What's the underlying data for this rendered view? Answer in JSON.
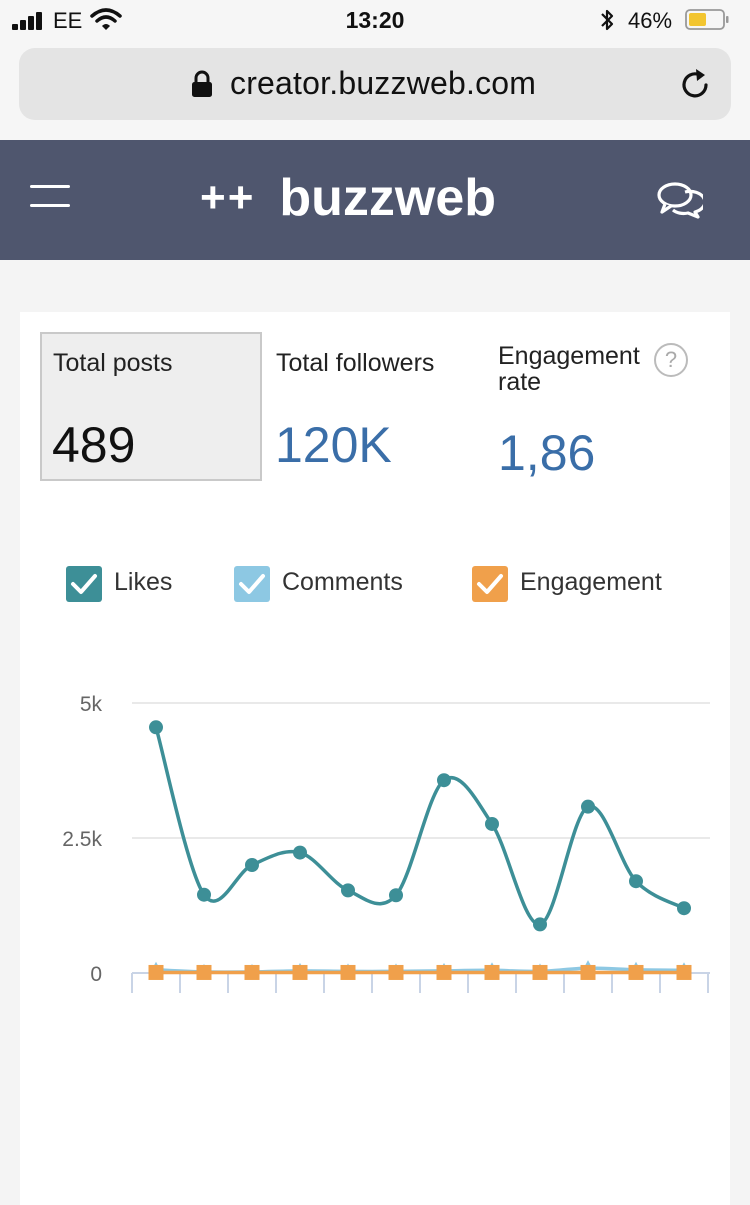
{
  "status_bar": {
    "carrier": "EE",
    "time": "13:20",
    "battery": "46%"
  },
  "browser": {
    "url": "creator.buzzweb.com"
  },
  "header": {
    "logo_mark": "++",
    "logo_text": "buzzweb"
  },
  "stats": {
    "posts": {
      "label": "Total posts",
      "value": "489"
    },
    "followers": {
      "label": "Total followers",
      "value": "120K"
    },
    "engagement": {
      "label_line1": "Engagement",
      "label_line2": "rate",
      "value": "1,86",
      "help": "?"
    }
  },
  "legend": [
    {
      "label": "Likes",
      "color": "#3d8f97",
      "checked": true
    },
    {
      "label": "Comments",
      "color": "#8dc8e3",
      "checked": true
    },
    {
      "label": "Engagement",
      "color": "#f0a04b",
      "checked": true
    }
  ],
  "colors": {
    "header_bg": "#4f566e",
    "value_blue": "#3a6ea8"
  },
  "chart_data": {
    "type": "line",
    "ytick_labels": [
      "0",
      "2.5k",
      "5k"
    ],
    "ylim": [
      0,
      5000
    ],
    "grid": true,
    "x": [
      1,
      2,
      3,
      4,
      5,
      6,
      7,
      8,
      9,
      10,
      11,
      12
    ],
    "series": [
      {
        "name": "Likes",
        "color": "#3d8f97",
        "marker": "circle",
        "values": [
          4550,
          1450,
          2000,
          2230,
          1530,
          1440,
          3570,
          2760,
          900,
          3080,
          1700,
          1200
        ]
      },
      {
        "name": "Comments",
        "color": "#8dc8e3",
        "marker": "triangle",
        "values": [
          60,
          20,
          20,
          40,
          30,
          30,
          40,
          50,
          30,
          90,
          60,
          50
        ]
      },
      {
        "name": "Engagement",
        "color": "#f0a04b",
        "marker": "square",
        "values": [
          10,
          10,
          10,
          10,
          10,
          10,
          10,
          10,
          10,
          10,
          10,
          10
        ]
      }
    ]
  }
}
